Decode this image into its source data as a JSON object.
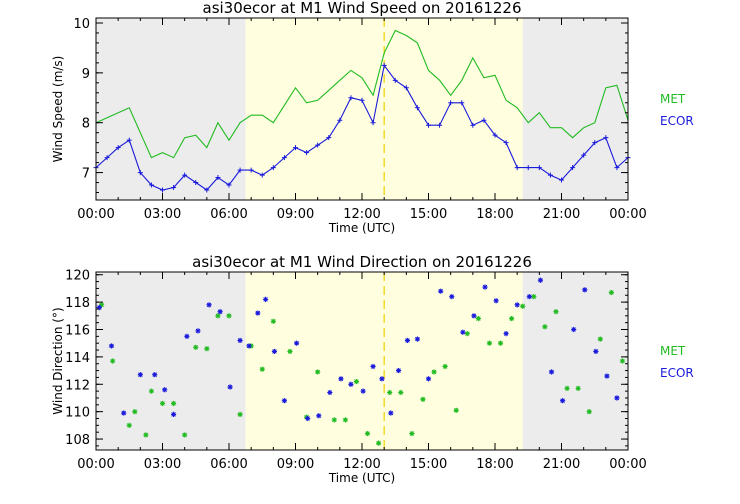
{
  "colors": {
    "met": "#22bb22",
    "ecor": "#1a1adc",
    "night": "#ececec",
    "day": "#ffffe0",
    "noon_line": "#f2d000",
    "axis": "#000000"
  },
  "chart_data": [
    {
      "type": "line",
      "title": "asi30ecor at M1 Wind Speed on 20161226",
      "xlabel": "Time (UTC)",
      "ylabel": "Wind Speed (m/s)",
      "xlim": [
        0,
        24
      ],
      "ylim": [
        6.45,
        10.1
      ],
      "xticks": [
        0,
        3,
        6,
        9,
        12,
        15,
        18,
        21,
        24
      ],
      "xtick_labels": [
        "00:00",
        "03:00",
        "06:00",
        "09:00",
        "12:00",
        "15:00",
        "18:00",
        "21:00",
        "00:00"
      ],
      "yticks": [
        7,
        8,
        9,
        10
      ],
      "ytick_labels": [
        "7",
        "8",
        "9",
        "10"
      ],
      "daylight": [
        6.75,
        19.25
      ],
      "noon_line": 13.0,
      "legend": {
        "position": "right",
        "labels": [
          "MET",
          "ECOR"
        ]
      },
      "series": [
        {
          "name": "MET",
          "color": "met",
          "marker": "none",
          "x": [
            0,
            0.5,
            1,
            1.5,
            2,
            2.5,
            3,
            3.5,
            4,
            4.5,
            5,
            5.5,
            6,
            6.5,
            7,
            7.5,
            8,
            8.5,
            9,
            9.5,
            10,
            10.5,
            11,
            11.5,
            12,
            12.5,
            13,
            13.5,
            14,
            14.5,
            15,
            15.5,
            16,
            16.5,
            17,
            17.5,
            18,
            18.5,
            19,
            19.5,
            20,
            20.5,
            21,
            21.5,
            22,
            22.5,
            23,
            23.5,
            24
          ],
          "y": [
            8.0,
            8.1,
            8.2,
            8.3,
            7.8,
            7.3,
            7.4,
            7.3,
            7.7,
            7.75,
            7.5,
            8.0,
            7.65,
            8.0,
            8.15,
            8.15,
            8.0,
            8.35,
            8.7,
            8.4,
            8.45,
            8.65,
            8.85,
            9.05,
            8.9,
            8.55,
            9.4,
            9.85,
            9.75,
            9.6,
            9.05,
            8.85,
            8.55,
            8.85,
            9.3,
            8.9,
            8.95,
            8.45,
            8.3,
            8.0,
            8.2,
            7.9,
            7.9,
            7.7,
            7.9,
            8.0,
            8.7,
            8.75,
            8.05
          ]
        },
        {
          "name": "ECOR",
          "color": "ecor",
          "marker": "+",
          "x": [
            0,
            0.5,
            1,
            1.5,
            2,
            2.5,
            3,
            3.5,
            4,
            4.5,
            5,
            5.5,
            6,
            6.5,
            7,
            7.5,
            8,
            8.5,
            9,
            9.5,
            10,
            10.5,
            11,
            11.5,
            12,
            12.5,
            13,
            13.5,
            14,
            14.5,
            15,
            15.5,
            16,
            16.5,
            17,
            17.5,
            18,
            18.5,
            19,
            19.5,
            20,
            20.5,
            21,
            21.5,
            22,
            22.5,
            23,
            23.5,
            24
          ],
          "y": [
            7.1,
            7.3,
            7.5,
            7.65,
            7.0,
            6.75,
            6.65,
            6.7,
            6.95,
            6.8,
            6.65,
            6.9,
            6.75,
            7.05,
            7.05,
            6.95,
            7.1,
            7.3,
            7.5,
            7.4,
            7.55,
            7.7,
            8.05,
            8.5,
            8.45,
            8.0,
            9.15,
            8.85,
            8.7,
            8.3,
            7.95,
            7.95,
            8.4,
            8.4,
            7.95,
            8.05,
            7.75,
            7.6,
            7.1,
            7.1,
            7.1,
            6.95,
            6.85,
            7.1,
            7.35,
            7.6,
            7.7,
            7.1,
            7.3
          ]
        }
      ]
    },
    {
      "type": "scatter",
      "title": "asi30ecor at M1 Wind Direction on 20161226",
      "xlabel": "Time (UTC)",
      "ylabel": "Wind Direction (°)",
      "xlim": [
        0,
        24
      ],
      "ylim": [
        107.2,
        120.2
      ],
      "xticks": [
        0,
        3,
        6,
        9,
        12,
        15,
        18,
        21,
        24
      ],
      "xtick_labels": [
        "00:00",
        "03:00",
        "06:00",
        "09:00",
        "12:00",
        "15:00",
        "18:00",
        "21:00",
        "00:00"
      ],
      "yticks": [
        108,
        110,
        112,
        114,
        116,
        118,
        120
      ],
      "ytick_labels": [
        "108",
        "110",
        "112",
        "114",
        "116",
        "118",
        "120"
      ],
      "daylight": [
        6.75,
        19.25
      ],
      "noon_line": 13.0,
      "legend": {
        "position": "right",
        "labels": [
          "MET",
          "ECOR"
        ]
      },
      "series": [
        {
          "name": "MET",
          "color": "met",
          "marker": "*",
          "x": [
            0.25,
            0.75,
            1.5,
            1.75,
            2.25,
            2.5,
            3,
            3.5,
            4,
            4.5,
            5,
            5.5,
            6,
            6.5,
            7,
            7.5,
            8,
            8.75,
            9.5,
            10,
            10.75,
            11.25,
            11.75,
            12.25,
            12.75,
            13.25,
            13.75,
            14.25,
            14.75,
            15.25,
            15.75,
            16.25,
            16.75,
            17.25,
            17.75,
            18.25,
            18.75,
            19.25,
            19.75,
            20.25,
            20.75,
            21.25,
            21.75,
            22.25,
            22.75,
            23.25,
            23.75
          ],
          "y": [
            117.8,
            113.7,
            109,
            110,
            108.3,
            111.5,
            110.6,
            110.6,
            108.3,
            114.7,
            114.6,
            117,
            117,
            109.8,
            114.8,
            113.1,
            116.6,
            114.4,
            109.6,
            112.9,
            109.4,
            109.4,
            112.2,
            108.4,
            107.7,
            111.4,
            111.4,
            108.4,
            110.9,
            112.9,
            113.3,
            110.1,
            115.7,
            116.8,
            115.0,
            115.0,
            116.8,
            117.7,
            118.4,
            116.2,
            117.3,
            111.7,
            111.7,
            110.0,
            115.3,
            118.7,
            113.7
          ]
        },
        {
          "name": "ECOR",
          "color": "ecor",
          "marker": "*",
          "x": [
            0.15,
            0.7,
            1.25,
            2,
            2.65,
            3.1,
            3.5,
            4.1,
            4.6,
            5.1,
            5.6,
            6.05,
            6.5,
            6.9,
            7.3,
            7.65,
            8.05,
            8.5,
            9.05,
            9.55,
            10.05,
            10.55,
            11.05,
            11.5,
            12.05,
            12.5,
            12.9,
            13.3,
            13.65,
            14.05,
            14.5,
            15.0,
            15.55,
            16.05,
            16.55,
            17.05,
            17.55,
            18.05,
            18.5,
            19.0,
            19.55,
            20.05,
            20.55,
            21.05,
            21.55,
            22.05,
            22.55,
            23.05,
            23.5
          ],
          "y": [
            117.6,
            114.8,
            109.9,
            112.7,
            112.7,
            111.6,
            109.8,
            115.5,
            115.9,
            117.8,
            117.3,
            111.8,
            115.2,
            114.8,
            117.2,
            118.2,
            114.4,
            110.8,
            115.0,
            109.5,
            109.7,
            111.4,
            112.4,
            112.0,
            111.5,
            113.3,
            112.4,
            109.9,
            113.0,
            115.2,
            115.3,
            112.4,
            118.8,
            118.4,
            115.8,
            117.0,
            119.1,
            118.1,
            115.7,
            117.8,
            118.4,
            119.6,
            112.9,
            110.8,
            116.0,
            118.9,
            114.4,
            112.6,
            111.0
          ]
        }
      ]
    }
  ]
}
